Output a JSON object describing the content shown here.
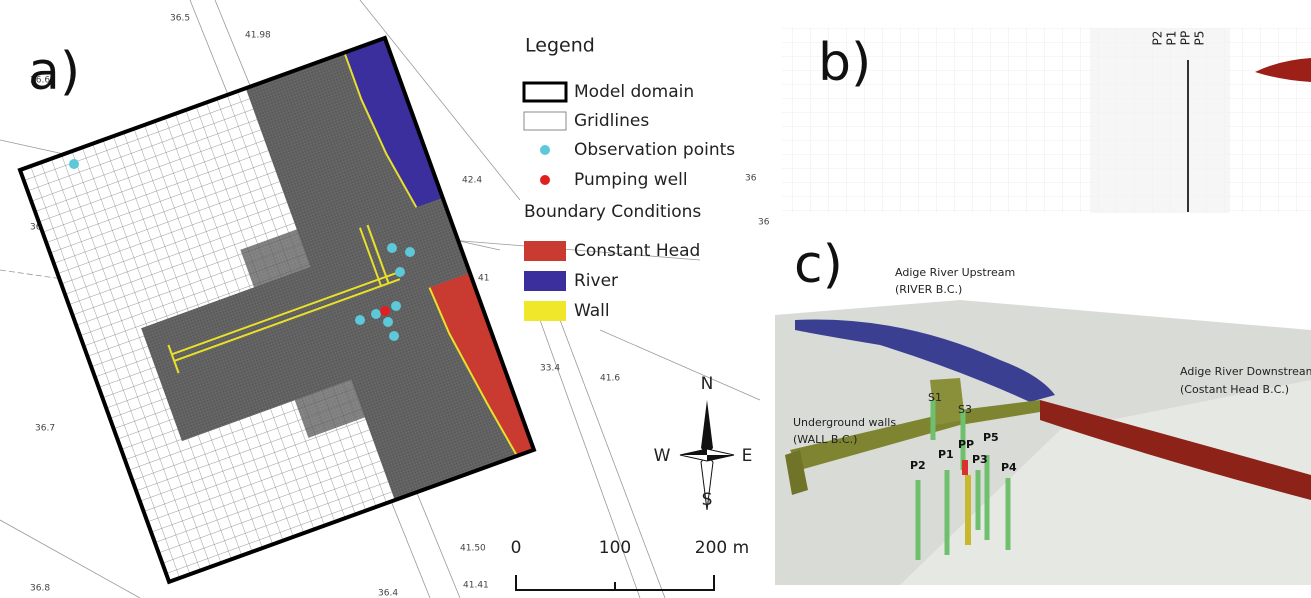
{
  "panels": {
    "a": "a)",
    "b": "b)",
    "c": "c)"
  },
  "legend": {
    "title": "Legend",
    "items": [
      "Model domain",
      "Gridlines",
      "Observation points",
      "Pumping well"
    ],
    "bc_title": "Boundary Conditions",
    "bc_items": [
      "Constant Head",
      "River",
      "Wall"
    ]
  },
  "scale": {
    "ticks": [
      "0",
      "100",
      "200 m"
    ]
  },
  "compass": {
    "n": "N",
    "e": "E",
    "s": "S",
    "w": "W"
  },
  "map_labels": [
    "36.5",
    "41.98",
    "36.6",
    "42.4",
    "36.8",
    "41",
    "36.7",
    "33.4",
    "41.6",
    "41.50",
    "36.8",
    "36.4",
    "41.41",
    "36",
    "36"
  ],
  "section_labels": [
    "P2",
    "P1",
    "PP",
    "P5"
  ],
  "model_labels": {
    "upstream": [
      "Adige River Upstream",
      "(RIVER B.C.)"
    ],
    "downstream": [
      "Adige River Downstream",
      "(Costant Head B.C.)"
    ],
    "walls": [
      "Underground walls",
      "(WALL B.C.)"
    ],
    "piezometers": [
      "S1",
      "S3",
      "PP",
      "P5",
      "P1",
      "P3",
      "P2",
      "P4"
    ]
  }
}
